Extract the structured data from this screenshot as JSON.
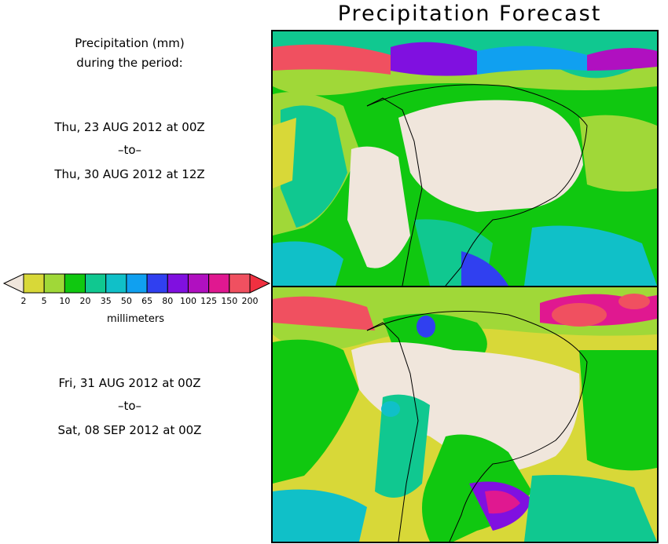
{
  "title": "Precipitation Forecast",
  "description": {
    "line1": "Precipitation (mm)",
    "line2": "during the period:"
  },
  "periods": [
    {
      "start": "Thu, 23 AUG 2012 at 00Z",
      "sep": "–to–",
      "end": "Thu, 30 AUG 2012 at 12Z"
    },
    {
      "start": "Fri, 31 AUG 2012 at 00Z",
      "sep": "–to–",
      "end": "Sat, 08 SEP 2012 at 00Z"
    }
  ],
  "legend": {
    "units": "millimeters",
    "ticks": [
      "2",
      "5",
      "10",
      "20",
      "35",
      "50",
      "65",
      "80",
      "100",
      "125",
      "150",
      "200"
    ],
    "colors": [
      "#d8d838",
      "#a0d838",
      "#10c810",
      "#10c890",
      "#10c0c8",
      "#10a0f0",
      "#3040f0",
      "#8010e0",
      "#b010c0",
      "#e01890",
      "#f05060"
    ],
    "low_arrow_color": "#f0e6dc",
    "high_arrow_color": "#f03040"
  }
}
